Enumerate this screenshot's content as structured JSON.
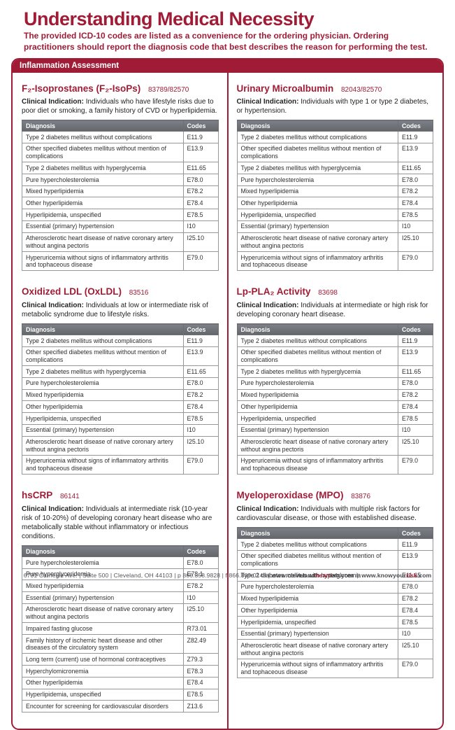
{
  "page": {
    "title": "Understanding Medical Necessity",
    "subtitle": "The provided ICD-10 codes are listed as a convenience for the ordering physician. Ordering practitioners should report the diagnosis code that best describes the reason for performing the test."
  },
  "banner": {
    "label": "Inflammation Assessment"
  },
  "labels": {
    "indication_label": "Clinical Indication:",
    "diagnosis_header": "Diagnosis",
    "codes_header": "Codes"
  },
  "colors": {
    "accent_red": "#a01c36",
    "table_header_gray": "#6e7277",
    "footer_gray": "#55565a"
  },
  "columns": {
    "left": [
      {
        "id": "f2-isoprostanes",
        "title": "F₂-Isoprostanes (F₂-IsoPs)",
        "code": "83789/82570",
        "indication": "Individuals who have lifestyle risks due to poor diet or smoking, a family history of CVD or hyperlipidemia.",
        "rows": [
          {
            "diagnosis": "Type 2 diabetes mellitus without complications",
            "code": "E11.9"
          },
          {
            "diagnosis": "Other specified diabetes mellitus without mention of complications",
            "code": "E13.9"
          },
          {
            "diagnosis": "Type 2 diabetes mellitus with hyperglycemia",
            "code": "E11.65"
          },
          {
            "diagnosis": "Pure hypercholesterolemia",
            "code": "E78.0"
          },
          {
            "diagnosis": "Mixed hyperlipidemia",
            "code": "E78.2"
          },
          {
            "diagnosis": "Other hyperlipidemia",
            "code": "E78.4"
          },
          {
            "diagnosis": "Hyperlipidemia, unspecified",
            "code": "E78.5"
          },
          {
            "diagnosis": "Essential (primary) hypertension",
            "code": "I10"
          },
          {
            "diagnosis": "Atherosclerotic heart disease of native coronary artery without angina pectoris",
            "code": "I25.10"
          },
          {
            "diagnosis": "Hyperuricemia without signs of inflammatory arthritis and tophaceous disease",
            "code": "E79.0"
          }
        ]
      },
      {
        "id": "oxidized-ldl",
        "title": "Oxidized LDL (OxLDL)",
        "code": "83516",
        "indication": "Individuals at low or intermediate risk of metabolic syndrome due to lifestyle risks.",
        "rows": [
          {
            "diagnosis": "Type 2 diabetes mellitus without complications",
            "code": "E11.9"
          },
          {
            "diagnosis": "Other specified diabetes mellitus without mention of complications",
            "code": "E13.9"
          },
          {
            "diagnosis": "Type 2 diabetes mellitus with hyperglycemia",
            "code": "E11.65"
          },
          {
            "diagnosis": "Pure hypercholesterolemia",
            "code": "E78.0"
          },
          {
            "diagnosis": "Mixed hyperlipidemia",
            "code": "E78.2"
          },
          {
            "diagnosis": "Other hyperlipidemia",
            "code": "E78.4"
          },
          {
            "diagnosis": "Hyperlipidemia, unspecified",
            "code": "E78.5"
          },
          {
            "diagnosis": "Essential (primary) hypertension",
            "code": "I10"
          },
          {
            "diagnosis": "Atherosclerotic heart disease of native coronary artery without angina pectoris",
            "code": "I25.10"
          },
          {
            "diagnosis": "Hyperuricemia without signs of inflammatory arthritis and tophaceous disease",
            "code": "E79.0"
          }
        ]
      },
      {
        "id": "hscrp",
        "title": "hsCRP",
        "code": "86141",
        "indication": "Individuals at intermediate risk (10-year risk of 10-20%) of developing coronary heart disease who are metabolically stable without inflammatory or infectious conditions.",
        "rows": [
          {
            "diagnosis": "Pure hypercholesterolemia",
            "code": "E78.0"
          },
          {
            "diagnosis": "Pure hyperglyceridemia",
            "code": "E78.1"
          },
          {
            "diagnosis": "Mixed hyperlipidemia",
            "code": "E78.2"
          },
          {
            "diagnosis": "Essential (primary) hypertension",
            "code": "I10"
          },
          {
            "diagnosis": "Atherosclerotic heart disease of native coronary artery without angina pectoris",
            "code": "I25.10"
          },
          {
            "diagnosis": "Impaired fasting glucose",
            "code": "R73.01"
          },
          {
            "diagnosis": "Family history of ischemic heart disease and other diseases of the circulatory system",
            "code": "Z82.49"
          },
          {
            "diagnosis": "Long term (current) use of hormonal contraceptives",
            "code": "Z79.3"
          },
          {
            "diagnosis": "Hyperchylomicronemia",
            "code": "E78.3"
          },
          {
            "diagnosis": "Other hyperlipidemia",
            "code": "E78.4"
          },
          {
            "diagnosis": "Hyperlipidemia, unspecified",
            "code": "E78.5"
          },
          {
            "diagnosis": "Encounter for screening for cardiovascular disorders",
            "code": "Z13.6"
          }
        ]
      }
    ],
    "right": [
      {
        "id": "urinary-microalbumin",
        "title": "Urinary Microalbumin",
        "code": "82043/82570",
        "indication": "Individuals with type 1 or type 2 diabetes, or hypertension.",
        "rows": [
          {
            "diagnosis": "Type 2 diabetes mellitus without complications",
            "code": "E11.9"
          },
          {
            "diagnosis": "Other specified diabetes mellitus without mention of complications",
            "code": "E13.9"
          },
          {
            "diagnosis": "Type 2 diabetes mellitus with hyperglycemia",
            "code": "E11.65"
          },
          {
            "diagnosis": "Pure hypercholesterolemia",
            "code": "E78.0"
          },
          {
            "diagnosis": "Mixed hyperlipidemia",
            "code": "E78.2"
          },
          {
            "diagnosis": "Other hyperlipidemia",
            "code": "E78.4"
          },
          {
            "diagnosis": "Hyperlipidemia, unspecified",
            "code": "E78.5"
          },
          {
            "diagnosis": "Essential (primary) hypertension",
            "code": "I10"
          },
          {
            "diagnosis": "Atherosclerotic heart disease of native coronary artery without angina pectoris",
            "code": "I25.10"
          },
          {
            "diagnosis": "Hyperuricemia without signs of inflammatory arthritis and tophaceous disease",
            "code": "E79.0"
          }
        ]
      },
      {
        "id": "lp-pla2-activity",
        "title": "Lp-PLA₂ Activity",
        "code": "83698",
        "indication": "Individuals at intermediate or high risk for developing coronary heart disease.",
        "rows": [
          {
            "diagnosis": "Type 2 diabetes mellitus without complications",
            "code": "E11.9"
          },
          {
            "diagnosis": "Other specified diabetes mellitus without mention of complications",
            "code": "E13.9"
          },
          {
            "diagnosis": "Type 2 diabetes mellitus with hyperglycemia",
            "code": "E11.65"
          },
          {
            "diagnosis": "Pure hypercholesterolemia",
            "code": "E78.0"
          },
          {
            "diagnosis": "Mixed hyperlipidemia",
            "code": "E78.2"
          },
          {
            "diagnosis": "Other hyperlipidemia",
            "code": "E78.4"
          },
          {
            "diagnosis": "Hyperlipidemia, unspecified",
            "code": "E78.5"
          },
          {
            "diagnosis": "Essential (primary) hypertension",
            "code": "I10"
          },
          {
            "diagnosis": "Atherosclerotic heart disease of native coronary artery without angina pectoris",
            "code": "I25.10"
          },
          {
            "diagnosis": "Hyperuricemia without signs of inflammatory arthritis and tophaceous disease",
            "code": "E79.0"
          }
        ]
      },
      {
        "id": "myeloperoxidase",
        "title": "Myeloperoxidase (MPO)",
        "code": "83876",
        "indication": "Individuals with multiple risk factors for cardiovascular disease, or those with established disease.",
        "rows": [
          {
            "diagnosis": "Type 2 diabetes mellitus without complications",
            "code": "E11.9"
          },
          {
            "diagnosis": "Other specified diabetes mellitus without mention of complications",
            "code": "E13.9"
          },
          {
            "diagnosis": "Type 2 diabetes mellitus with hyperglycemia",
            "code": "E11.65"
          },
          {
            "diagnosis": "Pure hypercholesterolemia",
            "code": "E78.0"
          },
          {
            "diagnosis": "Mixed hyperlipidemia",
            "code": "E78.2"
          },
          {
            "diagnosis": "Other hyperlipidemia",
            "code": "E78.4"
          },
          {
            "diagnosis": "Hyperlipidemia, unspecified",
            "code": "E78.5"
          },
          {
            "diagnosis": "Essential (primary) hypertension",
            "code": "I10"
          },
          {
            "diagnosis": "Atherosclerotic heart disease of native coronary artery without angina pectoris",
            "code": "I25.10"
          },
          {
            "diagnosis": "Hyperuricemia without signs of inflammatory arthritis and tophaceous disease",
            "code": "E79.0"
          }
        ]
      }
    ]
  },
  "footer": {
    "address": "6701 Carnegie Ave. | Suite 500 | Cleveland, OH 44103 | p 866.358.9828 | f 866.869.0148 |",
    "site1_prefix": "www.cleveland",
    "site1_highlight": "heart",
    "site1_suffix": "lab.com",
    "separator": "|",
    "site2_prefix": "www.knowyour",
    "site2_highlight": "risk",
    "site2_suffix": ".com"
  }
}
